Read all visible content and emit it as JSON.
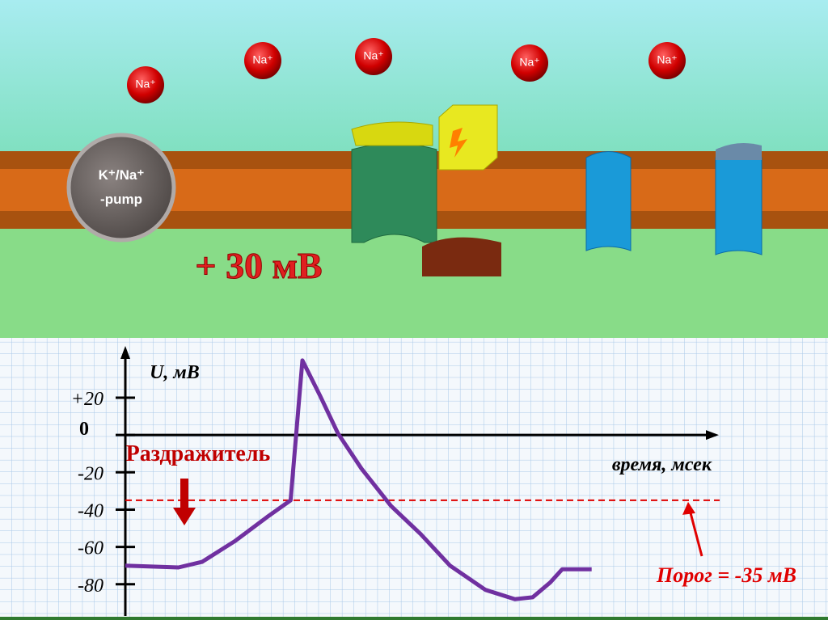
{
  "diagram": {
    "ions": [
      "Na⁺",
      "Na⁺",
      "Na⁺",
      "Na⁺",
      "Na⁺"
    ],
    "pump": [
      "K⁺/Na⁺",
      "-pump"
    ],
    "potential": "+ 30 мВ"
  },
  "chart_data": {
    "type": "line",
    "y_label": "U, мВ",
    "x_label": "время, мсек",
    "xlim": [
      0,
      100
    ],
    "ylim": [
      -97,
      46
    ],
    "yticks": [
      {
        "value": 20,
        "label": "+20"
      },
      0,
      -20,
      -40,
      -60,
      -80
    ],
    "x": [
      0,
      9,
      13,
      18.5,
      24,
      28,
      30,
      33,
      36,
      40,
      45,
      50,
      55,
      61,
      66,
      69,
      72,
      74,
      79
    ],
    "series": [
      {
        "color": "#7030a0",
        "values": [
          -70,
          -71,
          -68,
          -57,
          -44,
          -35,
          40,
          21,
          1,
          -18,
          -38,
          -53,
          -70,
          -83,
          -88,
          -87,
          -79,
          -72,
          -72
        ]
      }
    ],
    "threshold": {
      "value": -35,
      "label": "Порог = -35 мВ",
      "color": "#e00000"
    },
    "stimulus": {
      "label": "Раздражитель",
      "x": 10,
      "color": "#c00000"
    }
  }
}
